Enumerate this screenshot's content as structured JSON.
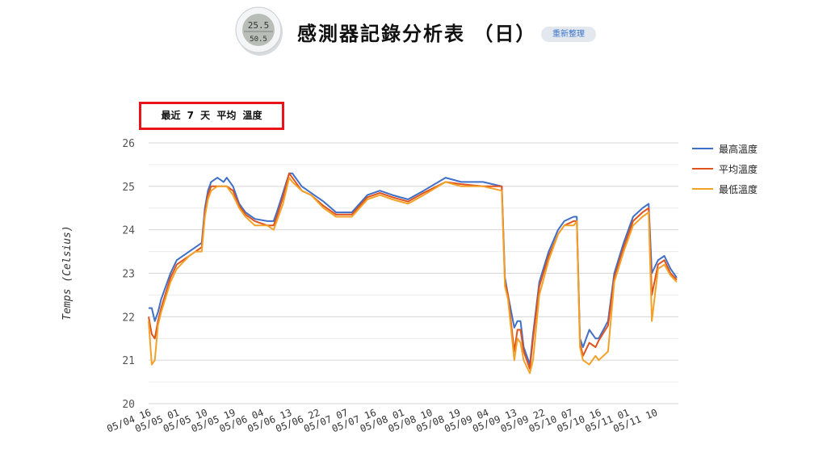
{
  "header": {
    "title": "感測器記錄分析表 （日）",
    "refresh_label": "重新整理",
    "device_icon": "thermo-hygrometer-image",
    "device_display": {
      "temp": "25.5",
      "humidity": "50.5"
    }
  },
  "chart_data": {
    "type": "line",
    "title": "最近 7 天 平均 溫度",
    "xlabel": "",
    "ylabel": "Temps (Celsius)",
    "ylim": [
      20,
      26
    ],
    "yticks": [
      20,
      21,
      22,
      23,
      24,
      25,
      26
    ],
    "grid": true,
    "legend_position": "right",
    "xticks": [
      "05/04 16",
      "05/05 01",
      "05/05 10",
      "05/05 19",
      "05/06 04",
      "05/06 13",
      "05/06 22",
      "05/07 07",
      "05/07 16",
      "05/08 01",
      "05/08 10",
      "05/08 19",
      "05/09 04",
      "05/09 13",
      "05/09 22",
      "05/10 07",
      "05/10 16",
      "05/11 01",
      "05/11 10"
    ],
    "x": [
      "05/04 16",
      "05/04 17",
      "05/04 18",
      "05/04 19",
      "05/04 20",
      "05/04 23",
      "05/05 01",
      "05/05 05",
      "05/05 07",
      "05/05 09",
      "05/05 10",
      "05/05 11",
      "05/05 12",
      "05/05 14",
      "05/05 16",
      "05/05 17",
      "05/05 19",
      "05/05 21",
      "05/05 23",
      "05/06 02",
      "05/06 06",
      "05/06 08",
      "05/06 09",
      "05/06 11",
      "05/06 13",
      "05/06 14",
      "05/06 17",
      "05/06 20",
      "05/07 00",
      "05/07 04",
      "05/07 09",
      "05/07 14",
      "05/07 18",
      "05/07 22",
      "05/08 03",
      "05/08 08",
      "05/08 15",
      "05/08 20",
      "05/09 03",
      "05/09 09",
      "05/09 10",
      "05/09 11",
      "05/09 13",
      "05/09 14",
      "05/09 15",
      "05/09 16",
      "05/09 18",
      "05/09 19",
      "05/09 21",
      "05/10 00",
      "05/10 03",
      "05/10 05",
      "05/10 08",
      "05/10 09",
      "05/10 10",
      "05/10 11",
      "05/10 13",
      "05/10 15",
      "05/10 16",
      "05/10 19",
      "05/10 21",
      "05/11 00",
      "05/11 03",
      "05/11 06",
      "05/11 08",
      "05/11 09",
      "05/11 11",
      "05/11 13",
      "05/11 15",
      "05/11 17"
    ],
    "series": [
      {
        "name": "最高溫度",
        "color": "#3f6fc6",
        "values": [
          22.2,
          22.2,
          21.9,
          22.1,
          22.4,
          23.0,
          23.3,
          23.5,
          23.6,
          23.7,
          24.5,
          24.9,
          25.1,
          25.2,
          25.1,
          25.2,
          25.0,
          24.6,
          24.4,
          24.25,
          24.2,
          24.2,
          24.4,
          24.85,
          25.3,
          25.3,
          25.0,
          24.85,
          24.65,
          24.4,
          24.4,
          24.8,
          24.9,
          24.8,
          24.7,
          24.9,
          25.2,
          25.1,
          25.1,
          25.0,
          22.9,
          22.5,
          21.75,
          21.9,
          21.9,
          21.3,
          20.9,
          21.6,
          22.8,
          23.5,
          24.0,
          24.2,
          24.3,
          24.3,
          21.5,
          21.3,
          21.7,
          21.5,
          21.5,
          21.9,
          23.0,
          23.7,
          24.3,
          24.5,
          24.6,
          23.0,
          23.3,
          23.4,
          23.1,
          22.9
        ]
      },
      {
        "name": "平均溫度",
        "color": "#e0531c",
        "values": [
          22.0,
          21.6,
          21.5,
          21.9,
          22.2,
          22.9,
          23.2,
          23.4,
          23.5,
          23.6,
          24.4,
          24.8,
          25.0,
          25.0,
          25.0,
          25.0,
          24.9,
          24.55,
          24.35,
          24.2,
          24.1,
          24.1,
          24.3,
          24.75,
          25.3,
          25.2,
          24.9,
          24.8,
          24.55,
          24.35,
          24.35,
          24.75,
          24.85,
          24.75,
          24.65,
          24.85,
          25.1,
          25.05,
          25.0,
          25.0,
          22.8,
          22.5,
          21.2,
          21.7,
          21.7,
          21.2,
          20.8,
          21.5,
          22.7,
          23.4,
          23.9,
          24.1,
          24.2,
          24.2,
          21.4,
          21.1,
          21.4,
          21.3,
          21.45,
          21.8,
          22.9,
          23.6,
          24.2,
          24.4,
          24.5,
          22.5,
          23.2,
          23.3,
          23.0,
          22.85
        ]
      },
      {
        "name": "最低溫度",
        "color": "#f2a229",
        "values": [
          21.9,
          20.9,
          21.0,
          21.8,
          22.1,
          22.8,
          23.1,
          23.4,
          23.5,
          23.5,
          24.3,
          24.7,
          24.9,
          25.0,
          25.0,
          25.0,
          24.8,
          24.5,
          24.3,
          24.1,
          24.1,
          24.0,
          24.2,
          24.6,
          25.2,
          25.1,
          24.9,
          24.8,
          24.5,
          24.3,
          24.3,
          24.7,
          24.8,
          24.7,
          24.6,
          24.8,
          25.1,
          25.0,
          25.0,
          24.9,
          22.7,
          22.4,
          21.0,
          21.5,
          21.4,
          21.0,
          20.7,
          21.0,
          22.5,
          23.3,
          23.9,
          24.1,
          24.1,
          24.2,
          21.3,
          21.0,
          20.9,
          21.1,
          21.0,
          21.2,
          22.8,
          23.5,
          24.1,
          24.3,
          24.4,
          21.9,
          23.1,
          23.2,
          22.95,
          22.8
        ]
      }
    ]
  }
}
